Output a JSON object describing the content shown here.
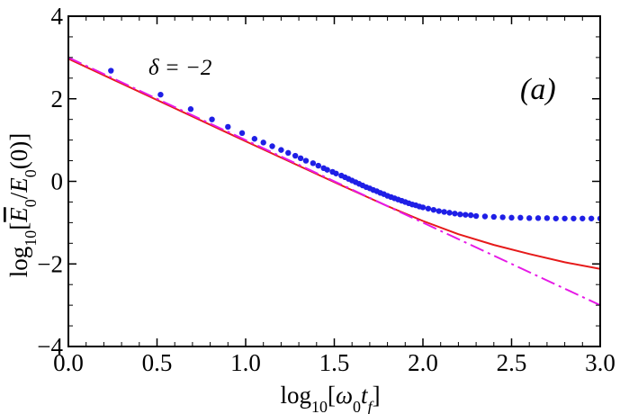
{
  "chart_data": {
    "type": "line",
    "xlabel": "log₁₀[ω₀t_f]",
    "ylabel": "log₁₀[E̅₀/E₀(0)]",
    "xlim": [
      0.0,
      3.0
    ],
    "ylim": [
      -4,
      4
    ],
    "x_ticks": [
      "0.0",
      "0.5",
      "1.0",
      "1.5",
      "2.0",
      "2.5",
      "3.0"
    ],
    "y_ticks": [
      "−4",
      "−2",
      "0",
      "2",
      "4"
    ],
    "grid": false,
    "annotations": {
      "delta_label": "δ = −2",
      "panel_label": "(a)"
    },
    "series": [
      {
        "style": "scatter",
        "color": "#1f1fe6",
        "x": [
          0.24,
          0.52,
          0.69,
          0.81,
          0.9,
          0.98,
          1.05,
          1.1,
          1.15,
          1.2,
          1.24,
          1.28,
          1.31,
          1.34,
          1.38,
          1.41,
          1.44,
          1.46,
          1.49,
          1.51,
          1.54,
          1.56,
          1.58,
          1.6,
          1.62,
          1.64,
          1.66,
          1.68,
          1.7,
          1.72,
          1.74,
          1.76,
          1.78,
          1.8,
          1.82,
          1.84,
          1.86,
          1.88,
          1.9,
          1.92,
          1.94,
          1.96,
          1.98,
          2.0,
          2.03,
          2.06,
          2.09,
          2.12,
          2.15,
          2.18,
          2.21,
          2.24,
          2.27,
          2.3,
          2.35,
          2.4,
          2.45,
          2.5,
          2.55,
          2.6,
          2.65,
          2.7,
          2.75,
          2.8,
          2.85,
          2.9,
          2.95,
          3.0
        ],
        "y": [
          2.68,
          2.1,
          1.75,
          1.5,
          1.32,
          1.17,
          1.03,
          0.94,
          0.85,
          0.76,
          0.69,
          0.62,
          0.56,
          0.5,
          0.44,
          0.38,
          0.32,
          0.28,
          0.23,
          0.19,
          0.14,
          0.1,
          0.06,
          0.02,
          -0.02,
          -0.06,
          -0.1,
          -0.14,
          -0.17,
          -0.21,
          -0.24,
          -0.28,
          -0.31,
          -0.35,
          -0.38,
          -0.41,
          -0.44,
          -0.47,
          -0.5,
          -0.53,
          -0.56,
          -0.58,
          -0.61,
          -0.63,
          -0.66,
          -0.69,
          -0.72,
          -0.74,
          -0.76,
          -0.78,
          -0.8,
          -0.81,
          -0.82,
          -0.84,
          -0.85,
          -0.86,
          -0.87,
          -0.88,
          -0.88,
          -0.89,
          -0.89,
          -0.89,
          -0.9,
          -0.9,
          -0.9,
          -0.9,
          -0.9,
          -0.9
        ]
      },
      {
        "style": "solid-line",
        "color": "#e61a1a",
        "x": [
          0.0,
          0.5,
          1.0,
          1.5,
          1.8,
          2.0,
          2.2,
          2.4,
          2.6,
          2.8,
          3.0
        ],
        "y": [
          2.97,
          1.97,
          0.97,
          -0.02,
          -0.6,
          -0.96,
          -1.28,
          -1.54,
          -1.76,
          -1.96,
          -2.12
        ]
      },
      {
        "style": "dash-dot-line",
        "color": "#e619e6",
        "x": [
          0.0,
          3.0
        ],
        "y": [
          3.0,
          -3.0
        ]
      }
    ]
  }
}
